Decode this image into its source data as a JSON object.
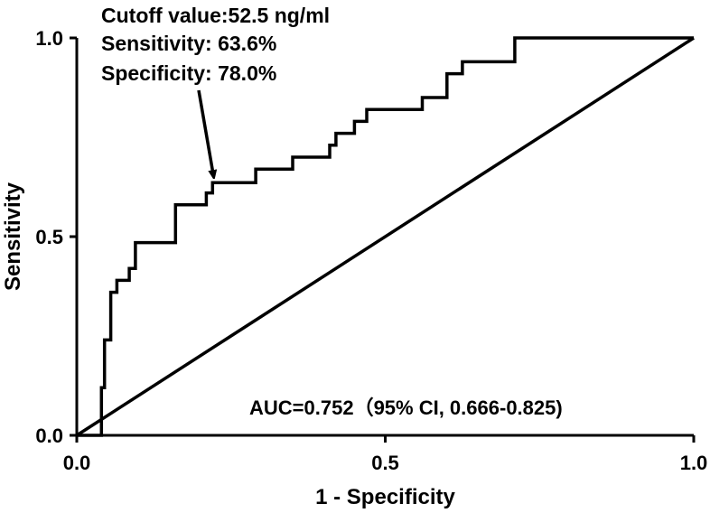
{
  "chart_data": {
    "type": "line",
    "title": "",
    "xlabel": "1 - Specificity",
    "ylabel": "Sensitivity",
    "xlim": [
      0,
      1
    ],
    "ylim": [
      0,
      1
    ],
    "x_ticks": [
      "0.0",
      "0.5",
      "1.0"
    ],
    "y_ticks": [
      "0.0",
      "0.5",
      "1.0"
    ],
    "grid": false,
    "legend": "none",
    "series": [
      {
        "color": "#000000",
        "x": [
          0,
          0.04,
          0.04,
          0.045,
          0.045,
          0.055,
          0.055,
          0.065,
          0.065,
          0.085,
          0.085,
          0.095,
          0.095,
          0.16,
          0.16,
          0.21,
          0.21,
          0.22,
          0.22,
          0.29,
          0.29,
          0.35,
          0.35,
          0.41,
          0.41,
          0.42,
          0.42,
          0.45,
          0.45,
          0.46,
          0.46,
          0.47,
          0.47,
          0.56,
          0.56,
          0.6,
          0.6,
          0.625,
          0.625,
          0.66,
          0.66,
          0.71,
          0.71,
          1.0
        ],
        "y": [
          0,
          0,
          0.12,
          0.12,
          0.24,
          0.24,
          0.36,
          0.36,
          0.39,
          0.39,
          0.42,
          0.42,
          0.485,
          0.485,
          0.58,
          0.58,
          0.61,
          0.61,
          0.636,
          0.636,
          0.67,
          0.67,
          0.7,
          0.7,
          0.73,
          0.73,
          0.76,
          0.76,
          0.79,
          0.79,
          0.79,
          0.79,
          0.82,
          0.82,
          0.85,
          0.85,
          0.91,
          0.91,
          0.94,
          0.94,
          0.94,
          0.94,
          1.0,
          1.0
        ]
      },
      {
        "color": "#000000",
        "x": [
          0,
          1
        ],
        "y": [
          0,
          1
        ]
      }
    ],
    "annotations": {
      "cutoff_lines": [
        "Cutoff value:52.5 ng/ml",
        "Sensitivity: 63.6%",
        "Specificity: 78.0%"
      ],
      "arrow_target": {
        "x": 0.22,
        "y": 0.636
      },
      "auc_text": "AUC=0.752（95% CI, 0.666-0.825)"
    }
  }
}
